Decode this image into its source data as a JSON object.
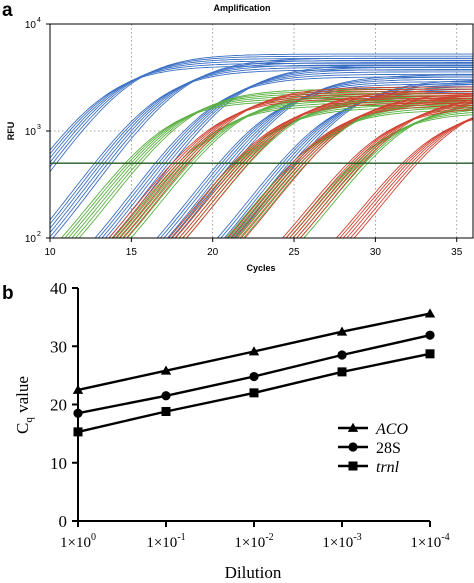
{
  "panel_a": {
    "label": "a",
    "chart_data": {
      "type": "line",
      "title": "Amplification",
      "xlabel": "Cycles",
      "ylabel": "RFU",
      "xlim": [
        10,
        36
      ],
      "ylim": [
        100,
        10000
      ],
      "yscale": "log",
      "xticks": [
        "10",
        "15",
        "20",
        "25",
        "30",
        "35"
      ],
      "yticks": [
        {
          "value": 100,
          "mantissa": "10",
          "exp": "2"
        },
        {
          "value": 1000,
          "mantissa": "10",
          "exp": "3"
        },
        {
          "value": 10000,
          "mantissa": "10",
          "exp": "4"
        }
      ],
      "grid": "dotted",
      "threshold": 500,
      "series": [
        {
          "color": "#3a6fc4",
          "groups": [
            {
              "c": 14.0,
              "plateau": 4700,
              "n": 6
            },
            {
              "c": 17.2,
              "plateau": 4300,
              "n": 6
            },
            {
              "c": 20.6,
              "plateau": 3700,
              "n": 6
            },
            {
              "c": 24.0,
              "plateau": 3000,
              "n": 6
            },
            {
              "c": 27.5,
              "plateau": 2700,
              "n": 6
            }
          ]
        },
        {
          "color": "#58b03f",
          "groups": [
            {
              "c": 17.5,
              "plateau": 2200,
              "n": 6
            },
            {
              "c": 20.5,
              "plateau": 2000,
              "n": 6
            },
            {
              "c": 23.8,
              "plateau": 1900,
              "n": 6
            },
            {
              "c": 27.2,
              "plateau": 1800,
              "n": 6
            },
            {
              "c": 30.8,
              "plateau": 1700,
              "n": 6
            }
          ]
        },
        {
          "color": "#d0412f",
          "groups": [
            {
              "c": 20.5,
              "plateau": 2300,
              "n": 6
            },
            {
              "c": 24.0,
              "plateau": 2100,
              "n": 6
            },
            {
              "c": 27.5,
              "plateau": 2000,
              "n": 6
            },
            {
              "c": 30.8,
              "plateau": 1900,
              "n": 6
            },
            {
              "c": 34.0,
              "plateau": 1800,
              "n": 6
            }
          ]
        }
      ]
    }
  },
  "panel_b": {
    "label": "b",
    "chart_data": {
      "type": "line",
      "xlabel": "Dilution",
      "ylabel_main": "C",
      "ylabel_sub": "q",
      "ylabel_rest": " value",
      "ylim": [
        0,
        40
      ],
      "yticks": [
        "0",
        "10",
        "20",
        "30",
        "40"
      ],
      "categories": [
        {
          "mantissa": "1×10",
          "exp": "0"
        },
        {
          "mantissa": "1×10",
          "exp": "-1"
        },
        {
          "mantissa": "1×10",
          "exp": "-2"
        },
        {
          "mantissa": "1×10",
          "exp": "-3"
        },
        {
          "mantissa": "1×10",
          "exp": "-4"
        }
      ],
      "series": [
        {
          "name": "ACO",
          "italic": true,
          "marker": "triangle",
          "values": [
            22.5,
            25.8,
            29.1,
            32.5,
            35.6
          ]
        },
        {
          "name": "28S",
          "italic": false,
          "marker": "circle",
          "values": [
            18.5,
            21.5,
            24.8,
            28.5,
            31.9
          ]
        },
        {
          "name": "trnl",
          "italic": true,
          "marker": "square",
          "values": [
            15.3,
            18.8,
            22.0,
            25.6,
            28.7
          ]
        }
      ]
    }
  }
}
